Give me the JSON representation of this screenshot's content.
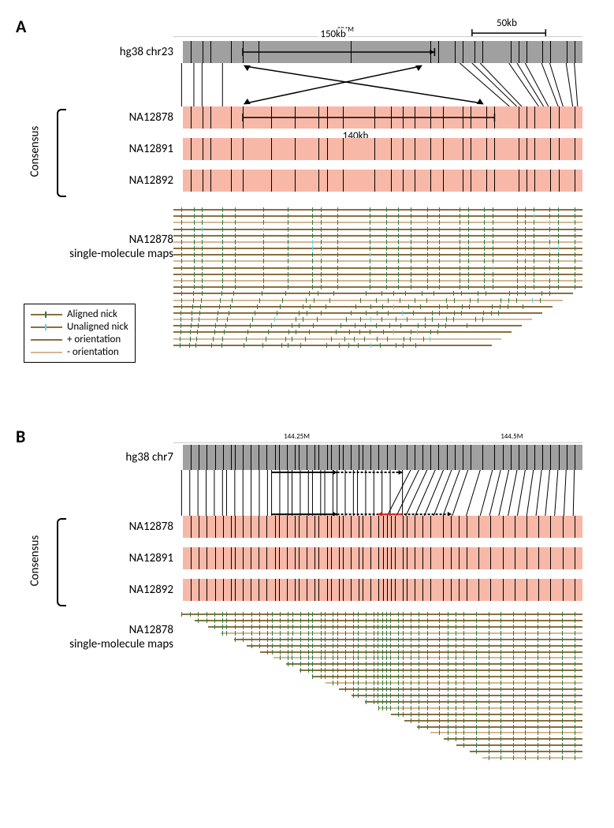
{
  "panelA": {
    "label": "A",
    "reference": {
      "label": "hg38 chr23",
      "color": "#a0a0a0"
    },
    "scale_bar": {
      "label": "50kb",
      "position": 0.75,
      "width_frac": 0.18
    },
    "axis_marker": {
      "label": "104M",
      "position": 0.42
    },
    "inversion": {
      "ref_label": "150kb",
      "cons_label": "140kb",
      "ref_start": 0.15,
      "ref_end": 0.63,
      "cons_start": 0.15,
      "cons_end": 0.78,
      "fill": "#b8d4e8",
      "opacity": 0.7
    },
    "consensus_label": "Consensus",
    "consensus_tracks": [
      {
        "label": "NA12878",
        "color": "#f8b8a8"
      },
      {
        "label": "NA12891",
        "color": "#f8b8a8"
      },
      {
        "label": "NA12892",
        "color": "#f8b8a8"
      }
    ],
    "molecules_label": "NA12878\nsingle-molecule maps",
    "ref_nicks": [
      0.02,
      0.05,
      0.07,
      0.12,
      0.15,
      0.19,
      0.42,
      0.62,
      0.64,
      0.68,
      0.7,
      0.73,
      0.75,
      0.82,
      0.84,
      0.86,
      0.9,
      0.92,
      0.96,
      0.98
    ],
    "cons_nicks": [
      0.02,
      0.05,
      0.07,
      0.12,
      0.15,
      0.22,
      0.28,
      0.34,
      0.36,
      0.4,
      0.48,
      0.52,
      0.55,
      0.58,
      0.62,
      0.65,
      0.7,
      0.72,
      0.76,
      0.78,
      0.84,
      0.86,
      0.88,
      0.92,
      0.94,
      0.98
    ],
    "molecule_rows": 22,
    "legend": {
      "items": [
        {
          "label": "Aligned nick",
          "line_color": "#8b6f3e",
          "tick_color": "#2d7a3d"
        },
        {
          "label": "Unaligned nick",
          "line_color": "#8b6f3e",
          "tick_color": "#5dd5e5"
        },
        {
          "label": "+ orientation",
          "line_color": "#8b6f3e"
        },
        {
          "label": "- orientation",
          "line_color": "#d4b896"
        }
      ]
    },
    "mol_colors": {
      "plus": "#8b6f3e",
      "minus": "#d4b896",
      "aligned_tick": "#2d7a3d",
      "unaligned_tick": "#5dd5e5"
    }
  },
  "panelB": {
    "label": "B",
    "reference": {
      "label": "hg38 chr7",
      "color": "#a0a0a0"
    },
    "axis_markers": [
      {
        "label": "144.25M",
        "position": 0.3
      },
      {
        "label": "144.5M",
        "position": 0.83
      }
    ],
    "consensus_label": "Consensus",
    "consensus_tracks": [
      {
        "label": "NA12878",
        "color": "#f8b8a8"
      },
      {
        "label": "NA12891",
        "color": "#f8b8a8"
      },
      {
        "label": "NA12892",
        "color": "#f8b8a8"
      }
    ],
    "molecules_label": "NA12878\nsingle-molecule maps",
    "regions": [
      {
        "type": "green",
        "ref_start": 0.24,
        "ref_end": 0.4,
        "cons_start": 0.24,
        "cons_end": 0.4,
        "fill": "#c8dba8",
        "opacity": 0.65
      },
      {
        "type": "blue",
        "ref_start": 0.4,
        "ref_end": 0.56,
        "cons_start": 0.4,
        "cons_end": 0.5,
        "fill": "#b8d4e8",
        "opacity": 0.6
      }
    ],
    "insertion_arrow_color": "#d62020",
    "ref_nicks": [
      0.02,
      0.04,
      0.06,
      0.08,
      0.1,
      0.12,
      0.13,
      0.15,
      0.17,
      0.19,
      0.21,
      0.23,
      0.24,
      0.26,
      0.28,
      0.29,
      0.31,
      0.33,
      0.34,
      0.36,
      0.37,
      0.39,
      0.4,
      0.42,
      0.44,
      0.45,
      0.47,
      0.49,
      0.51,
      0.53,
      0.56,
      0.58,
      0.6,
      0.62,
      0.64,
      0.66,
      0.68,
      0.7,
      0.72,
      0.75,
      0.78,
      0.8,
      0.82,
      0.84,
      0.86,
      0.88,
      0.9,
      0.92,
      0.94,
      0.96,
      0.98
    ],
    "cons_nicks": [
      0.02,
      0.04,
      0.06,
      0.08,
      0.1,
      0.12,
      0.13,
      0.15,
      0.17,
      0.19,
      0.21,
      0.23,
      0.24,
      0.26,
      0.28,
      0.29,
      0.31,
      0.33,
      0.34,
      0.36,
      0.37,
      0.39,
      0.4,
      0.42,
      0.44,
      0.45,
      0.47,
      0.49,
      0.5,
      0.51,
      0.52,
      0.53,
      0.55,
      0.56,
      0.58,
      0.6,
      0.62,
      0.65,
      0.67,
      0.69,
      0.71,
      0.74,
      0.77,
      0.8,
      0.83,
      0.86,
      0.89,
      0.92,
      0.95,
      0.98
    ],
    "molecule_rows": 24,
    "mol_colors": {
      "plus": "#8b6f3e",
      "minus": "#d4b896",
      "aligned_tick": "#2d7a3d"
    }
  }
}
